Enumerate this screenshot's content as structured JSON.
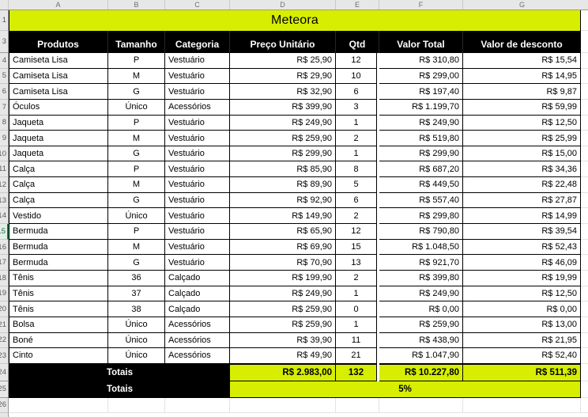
{
  "title": "Meteora",
  "column_letters": [
    "A",
    "B",
    "C",
    "D",
    "E",
    "F",
    "G"
  ],
  "gutter": {
    "title_row_number": "1",
    "header_row_number": "3",
    "totals_row_number": "24",
    "discount_row_number": "25",
    "empty_row_number": "26"
  },
  "selected_row_number": 15,
  "headers": {
    "produtos": "Produtos",
    "tamanho": "Tamanho",
    "categoria": "Categoria",
    "preco_unitario": "Preço Unitário",
    "qtd": "Qtd",
    "valor_total": "Valor Total",
    "valor_de_desconto": "Valor de desconto"
  },
  "rows": [
    {
      "n": 4,
      "produto": "Camiseta Lisa",
      "tamanho": "P",
      "categoria": "Vestuário",
      "preco": "R$ 25,90",
      "qtd": "12",
      "valor_total": "R$ 310,80",
      "desconto": "R$ 15,54"
    },
    {
      "n": 5,
      "produto": "Camiseta Lisa",
      "tamanho": "M",
      "categoria": "Vestuário",
      "preco": "R$ 29,90",
      "qtd": "10",
      "valor_total": "R$ 299,00",
      "desconto": "R$ 14,95"
    },
    {
      "n": 6,
      "produto": "Camiseta Lisa",
      "tamanho": "G",
      "categoria": "Vestuário",
      "preco": "R$ 32,90",
      "qtd": "6",
      "valor_total": "R$ 197,40",
      "desconto": "R$ 9,87"
    },
    {
      "n": 7,
      "produto": "Óculos",
      "tamanho": "Único",
      "categoria": "Acessórios",
      "preco": "R$ 399,90",
      "qtd": "3",
      "valor_total": "R$ 1.199,70",
      "desconto": "R$ 59,99"
    },
    {
      "n": 8,
      "produto": "Jaqueta",
      "tamanho": "P",
      "categoria": "Vestuário",
      "preco": "R$ 249,90",
      "qtd": "1",
      "valor_total": "R$ 249,90",
      "desconto": "R$ 12,50"
    },
    {
      "n": 9,
      "produto": "Jaqueta",
      "tamanho": "M",
      "categoria": "Vestuário",
      "preco": "R$ 259,90",
      "qtd": "2",
      "valor_total": "R$ 519,80",
      "desconto": "R$ 25,99"
    },
    {
      "n": 10,
      "produto": "Jaqueta",
      "tamanho": "G",
      "categoria": "Vestuário",
      "preco": "R$ 299,90",
      "qtd": "1",
      "valor_total": "R$ 299,90",
      "desconto": "R$ 15,00"
    },
    {
      "n": 11,
      "produto": "Calça",
      "tamanho": "P",
      "categoria": "Vestuário",
      "preco": "R$ 85,90",
      "qtd": "8",
      "valor_total": "R$ 687,20",
      "desconto": "R$ 34,36"
    },
    {
      "n": 12,
      "produto": "Calça",
      "tamanho": "M",
      "categoria": "Vestuário",
      "preco": "R$ 89,90",
      "qtd": "5",
      "valor_total": "R$ 449,50",
      "desconto": "R$ 22,48"
    },
    {
      "n": 13,
      "produto": "Calça",
      "tamanho": "G",
      "categoria": "Vestuário",
      "preco": "R$ 92,90",
      "qtd": "6",
      "valor_total": "R$ 557,40",
      "desconto": "R$ 27,87"
    },
    {
      "n": 14,
      "produto": "Vestido",
      "tamanho": "Único",
      "categoria": "Vestuário",
      "preco": "R$ 149,90",
      "qtd": "2",
      "valor_total": "R$ 299,80",
      "desconto": "R$ 14,99"
    },
    {
      "n": 15,
      "produto": "Bermuda",
      "tamanho": "P",
      "categoria": "Vestuário",
      "preco": "R$ 65,90",
      "qtd": "12",
      "valor_total": "R$ 790,80",
      "desconto": "R$ 39,54"
    },
    {
      "n": 16,
      "produto": "Bermuda",
      "tamanho": "M",
      "categoria": "Vestuário",
      "preco": "R$ 69,90",
      "qtd": "15",
      "valor_total": "R$ 1.048,50",
      "desconto": "R$ 52,43"
    },
    {
      "n": 17,
      "produto": "Bermuda",
      "tamanho": "G",
      "categoria": "Vestuário",
      "preco": "R$ 70,90",
      "qtd": "13",
      "valor_total": "R$ 921,70",
      "desconto": "R$ 46,09"
    },
    {
      "n": 18,
      "produto": "Tênis",
      "tamanho": "36",
      "categoria": "Calçado",
      "preco": "R$ 199,90",
      "qtd": "2",
      "valor_total": "R$ 399,80",
      "desconto": "R$ 19,99"
    },
    {
      "n": 19,
      "produto": "Tênis",
      "tamanho": "37",
      "categoria": "Calçado",
      "preco": "R$ 249,90",
      "qtd": "1",
      "valor_total": "R$ 249,90",
      "desconto": "R$ 12,50"
    },
    {
      "n": 20,
      "produto": "Tênis",
      "tamanho": "38",
      "categoria": "Calçado",
      "preco": "R$ 259,90",
      "qtd": "0",
      "valor_total": "R$ 0,00",
      "desconto": "R$ 0,00"
    },
    {
      "n": 21,
      "produto": "Bolsa",
      "tamanho": "Único",
      "categoria": "Acessórios",
      "preco": "R$ 259,90",
      "qtd": "1",
      "valor_total": "R$ 259,90",
      "desconto": "R$ 13,00"
    },
    {
      "n": 22,
      "produto": "Boné",
      "tamanho": "Único",
      "categoria": "Acessórios",
      "preco": "R$ 39,90",
      "qtd": "11",
      "valor_total": "R$ 438,90",
      "desconto": "R$ 21,95"
    },
    {
      "n": 23,
      "produto": "Cinto",
      "tamanho": "Único",
      "categoria": "Acessórios",
      "preco": "R$ 49,90",
      "qtd": "21",
      "valor_total": "R$ 1.047,90",
      "desconto": "R$ 52,40"
    }
  ],
  "totals_row": {
    "label": "Totais",
    "preco": "R$ 2.983,00",
    "qtd": "132",
    "valor_total": "R$ 10.227,80",
    "desconto": "R$ 511,39"
  },
  "discount_row": {
    "label": "Totais",
    "value": "5%"
  },
  "colors": {
    "accent_yellow": "#d7ee00",
    "header_black": "#000000",
    "selection_green": "#1e7145"
  }
}
